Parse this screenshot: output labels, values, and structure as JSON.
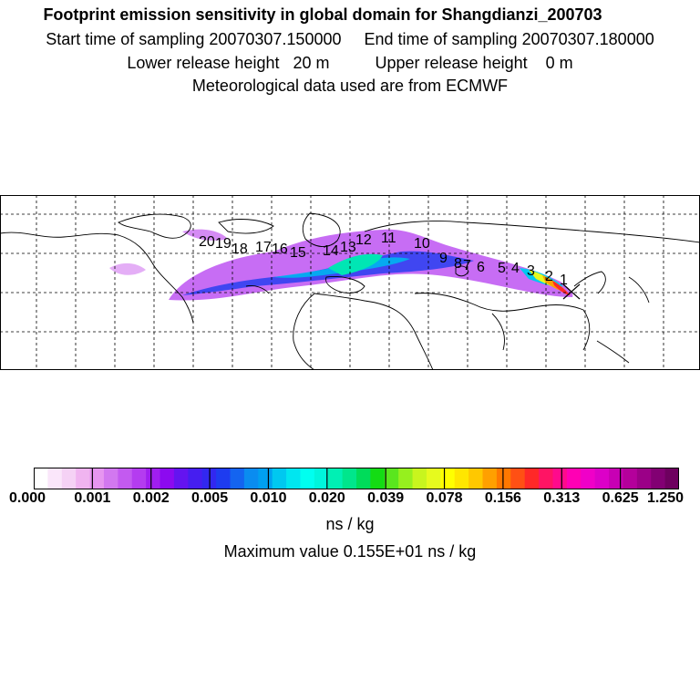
{
  "header": {
    "title": "Footprint emission sensitivity in global domain for Shangdianzi_200703",
    "line2": "Start time of sampling 20070307.150000     End time of sampling 20070307.180000",
    "line3": "Lower release height   20 m          Upper release height    0 m",
    "line4": "Meteorological data used are from ECMWF"
  },
  "map": {
    "station_marker": "x-marker-icon",
    "day_labels": [
      "1",
      "2",
      "3",
      "4",
      "5",
      "6",
      "7",
      "8",
      "9",
      "10",
      "11",
      "12",
      "13",
      "14",
      "15",
      "16",
      "17",
      "18",
      "19",
      "20"
    ]
  },
  "colorbar": {
    "colors": [
      "#ffffff",
      "#fae6fa",
      "#f5d2f5",
      "#f0b4f0",
      "#e696f0",
      "#d278f0",
      "#c35af0",
      "#b43cf0",
      "#a01ef0",
      "#8c0af0",
      "#6414f0",
      "#461ef0",
      "#3228f0",
      "#1e3cf0",
      "#1464f0",
      "#0a8cf0",
      "#00a0f0",
      "#00c8f0",
      "#00e6f0",
      "#00fff0",
      "#00f5dc",
      "#00f0b4",
      "#00e68c",
      "#00dc5a",
      "#14dc14",
      "#5ae61e",
      "#96f01e",
      "#c8f51e",
      "#e6fa1e",
      "#ffff00",
      "#ffe600",
      "#ffc800",
      "#ffa000",
      "#ff7800",
      "#ff5014",
      "#ff2828",
      "#ff1464",
      "#ff0a8c",
      "#ff00b4",
      "#f000c8",
      "#dc00c8",
      "#c800b4",
      "#b4009b",
      "#9b0087",
      "#820073",
      "#6e005f"
    ],
    "ticks": [
      "0.000",
      "0.001",
      "0.002",
      "0.005",
      "0.010",
      "0.020",
      "0.039",
      "0.078",
      "0.156",
      "0.313",
      "0.625",
      "1.250"
    ],
    "unit": "ns / kg",
    "max_value_text": "Maximum value  0.155E+01 ns / kg"
  }
}
